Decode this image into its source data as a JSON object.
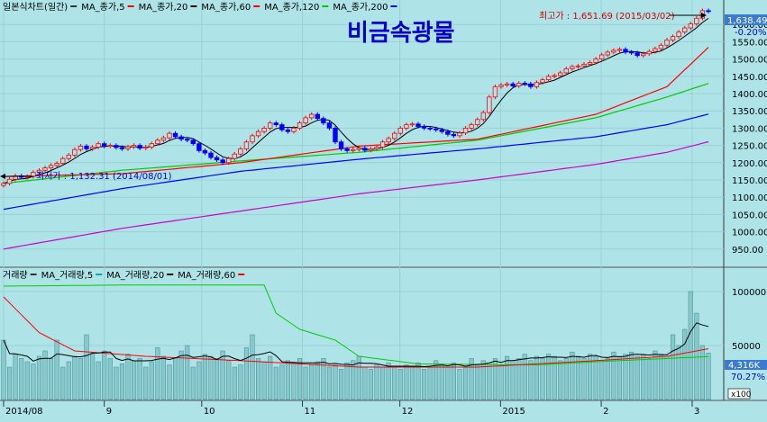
{
  "price_panel": {
    "legend": [
      {
        "label": "일본식차트(일간)",
        "color": "#333333"
      },
      {
        "label": "MA_종가,5",
        "color": "#ff0000"
      },
      {
        "label": "MA_종가,20",
        "color": "#000000"
      },
      {
        "label": "MA_종가,60",
        "color": "#ff0000"
      },
      {
        "label": "MA_종가,120",
        "color": "#00cc00"
      },
      {
        "label": "MA_종가,200",
        "color": "#0000ff"
      }
    ],
    "title": "비금속광물",
    "high_annotation": "최고가 : 1,651.69 (2015/03/02)",
    "low_annotation": "최저가 : 1,132.31 (2014/08/01)",
    "current_price_label": "1,638.49",
    "change_label": "-0.20%"
  },
  "volume_panel": {
    "legend": [
      {
        "label": "거래량",
        "color": "#333333"
      },
      {
        "label": "MA_거래량,5",
        "color": "#00aaaa"
      },
      {
        "label": "MA_거래량,20",
        "color": "#000000"
      },
      {
        "label": "MA_거래량,60",
        "color": "#ff0000"
      }
    ],
    "current_volume_label": "4,316K",
    "ratio_label": "70.27%",
    "unit_label": "x100"
  },
  "colors": {
    "background": "#aee4e8",
    "candle_up": "#ff0000",
    "candle_down": "#0000ff",
    "ma5": "#ff0000",
    "ma20": "#000000",
    "ma60": "#ff0000",
    "ma120": "#00cc00",
    "ma200": "#0000ff",
    "ma_long": "#cc00cc",
    "volume_bar": "#88c8cc"
  },
  "chart_data": {
    "type": "candlestick",
    "x_axis_labels": [
      {
        "label": "2014/08",
        "date": "2014-08-01"
      },
      {
        "label": "9",
        "date": "2014-09-01"
      },
      {
        "label": "10",
        "date": "2014-10-01"
      },
      {
        "label": "11",
        "date": "2014-11-01"
      },
      {
        "label": "12",
        "date": "2014-12-01"
      },
      {
        "label": "2015",
        "date": "2015-01-01"
      },
      {
        "label": "2",
        "date": "2015-02-01"
      },
      {
        "label": "3",
        "date": "2015-03-01"
      }
    ],
    "price_axis": {
      "ylim": [
        900,
        1650
      ],
      "ticks": [
        950,
        1000,
        1050,
        1100,
        1150,
        1200,
        1250,
        1300,
        1350,
        1400,
        1450,
        1500,
        1550,
        1600
      ]
    },
    "volume_axis": {
      "ylim": [
        0,
        120000
      ],
      "ticks": [
        50000,
        100000
      ]
    },
    "price_closes": [
      1140,
      1152,
      1162,
      1158,
      1160,
      1172,
      1178,
      1185,
      1192,
      1198,
      1212,
      1222,
      1238,
      1248,
      1240,
      1245,
      1255,
      1248,
      1250,
      1244,
      1240,
      1246,
      1250,
      1242,
      1245,
      1255,
      1265,
      1272,
      1285,
      1275,
      1268,
      1265,
      1255,
      1235,
      1228,
      1215,
      1208,
      1200,
      1212,
      1225,
      1240,
      1260,
      1278,
      1290,
      1300,
      1315,
      1310,
      1295,
      1290,
      1300,
      1315,
      1330,
      1340,
      1328,
      1315,
      1300,
      1260,
      1240,
      1235,
      1238,
      1242,
      1236,
      1240,
      1245,
      1260,
      1270,
      1285,
      1300,
      1310,
      1312,
      1305,
      1300,
      1298,
      1295,
      1290,
      1282,
      1278,
      1286,
      1300,
      1310,
      1325,
      1345,
      1390,
      1420,
      1425,
      1428,
      1422,
      1430,
      1428,
      1420,
      1432,
      1440,
      1450,
      1452,
      1460,
      1472,
      1478,
      1480,
      1485,
      1490,
      1500,
      1512,
      1520,
      1525,
      1528,
      1520,
      1518,
      1510,
      1515,
      1522,
      1530,
      1540,
      1555,
      1565,
      1578,
      1590,
      1602,
      1618,
      1640,
      1638
    ],
    "ma_series": {
      "ma60": [
        [
          0,
          1160
        ],
        [
          20,
          1168
        ],
        [
          40,
          1200
        ],
        [
          60,
          1248
        ],
        [
          80,
          1268
        ],
        [
          100,
          1340
        ],
        [
          112,
          1420
        ],
        [
          120,
          1550
        ]
      ],
      "ma120": [
        [
          0,
          1140
        ],
        [
          20,
          1178
        ],
        [
          40,
          1205
        ],
        [
          60,
          1230
        ],
        [
          80,
          1265
        ],
        [
          100,
          1330
        ],
        [
          112,
          1390
        ],
        [
          120,
          1435
        ]
      ],
      "ma200": [
        [
          0,
          1065
        ],
        [
          20,
          1125
        ],
        [
          40,
          1175
        ],
        [
          60,
          1210
        ],
        [
          80,
          1240
        ],
        [
          100,
          1275
        ],
        [
          112,
          1310
        ],
        [
          120,
          1345
        ]
      ],
      "ma_long": [
        [
          0,
          950
        ],
        [
          20,
          1010
        ],
        [
          40,
          1060
        ],
        [
          60,
          1110
        ],
        [
          80,
          1150
        ],
        [
          100,
          1195
        ],
        [
          112,
          1230
        ],
        [
          120,
          1265
        ]
      ]
    },
    "volumes": [
      55000,
      30000,
      42000,
      38000,
      35000,
      33000,
      40000,
      45000,
      38000,
      55000,
      30000,
      35000,
      40000,
      38000,
      60000,
      42000,
      35000,
      45000,
      38000,
      30000,
      33000,
      42000,
      36000,
      38000,
      30000,
      35000,
      48000,
      40000,
      32000,
      38000,
      45000,
      50000,
      30000,
      35000,
      42000,
      40000,
      38000,
      45000,
      36000,
      30000,
      32000,
      48000,
      60000,
      38000,
      35000,
      40000,
      30000,
      32000,
      36000,
      34000,
      38000,
      30000,
      32000,
      35000,
      38000,
      30000,
      32000,
      28000,
      34000,
      36000,
      40000,
      30000,
      28000,
      32000,
      30000,
      34000,
      30000,
      28000,
      32000,
      30000,
      34000,
      28000,
      30000,
      36000,
      32000,
      30000,
      34000,
      28000,
      30000,
      38000,
      32000,
      36000,
      34000,
      38000,
      32000,
      40000,
      36000,
      38000,
      42000,
      36000,
      40000,
      38000,
      42000,
      40000,
      36000,
      38000,
      44000,
      40000,
      38000,
      42000,
      40000,
      36000,
      38000,
      44000,
      40000,
      42000,
      44000,
      40000,
      42000,
      38000,
      45000,
      42000,
      40000,
      60000,
      50000,
      65000,
      100000,
      80000,
      50000,
      43000
    ],
    "volume_ma": {
      "ma60": [
        [
          0,
          95000
        ],
        [
          6,
          62000
        ],
        [
          12,
          45000
        ],
        [
          24,
          40000
        ],
        [
          40,
          36000
        ],
        [
          60,
          30000
        ],
        [
          80,
          30000
        ],
        [
          100,
          36000
        ],
        [
          112,
          40000
        ],
        [
          120,
          48000
        ]
      ],
      "ma120": [
        [
          0,
          105000
        ],
        [
          20,
          106000
        ],
        [
          44,
          106000
        ],
        [
          46,
          80000
        ],
        [
          50,
          65000
        ],
        [
          56,
          55000
        ],
        [
          60,
          40000
        ],
        [
          70,
          33000
        ],
        [
          90,
          32000
        ],
        [
          100,
          35000
        ],
        [
          120,
          40000
        ]
      ]
    }
  }
}
